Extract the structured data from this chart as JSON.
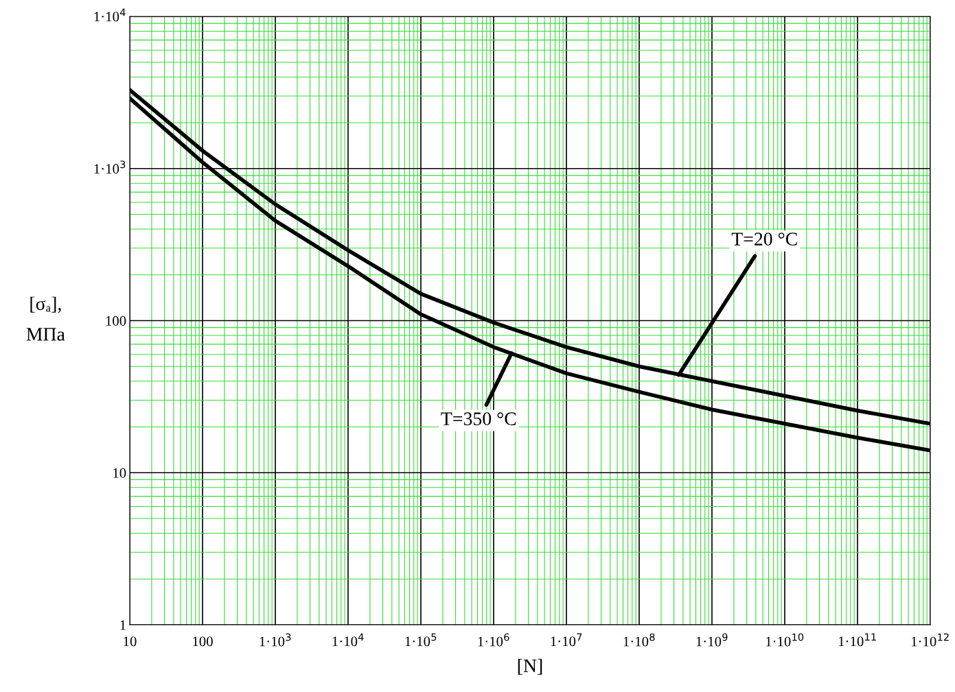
{
  "chart_data": {
    "type": "line",
    "xlabel": "[N]",
    "ylabel": "[σₐ],\nМПа",
    "log": "xy",
    "grid": true,
    "marker": "none",
    "line_style": "solid",
    "legend": false,
    "x": [
      10,
      100,
      1000,
      10000,
      100000,
      1000000,
      10000000,
      100000000,
      1000000000,
      10000000000,
      100000000000,
      1000000000000
    ],
    "series": [
      {
        "color": "#000000",
        "values": [
          3290,
          1310,
          582,
          290,
          150,
          97,
          67,
          50,
          40,
          32,
          25.6,
          21
        ]
      },
      {
        "color": "#000000",
        "values": [
          2900,
          1100,
          454,
          228,
          110,
          67,
          45,
          34,
          26,
          21,
          17,
          14
        ]
      }
    ],
    "xlim": [
      10,
      1000000000000
    ],
    "xticks": [
      {
        "value": 10,
        "label": "10"
      },
      {
        "value": 100,
        "label": "100"
      },
      {
        "value": 1000,
        "label": "1·10$^{3}$"
      },
      {
        "value": 10000,
        "label": "1·10$^{4}$"
      },
      {
        "value": 100000,
        "label": "1·10$^{5}$"
      },
      {
        "value": 1000000,
        "label": "1·10$^{6}$"
      },
      {
        "value": 10000000,
        "label": "1·10$^{7}$"
      },
      {
        "value": 100000000,
        "label": "1·10$^{8}$"
      },
      {
        "value": 1000000000,
        "label": "1·10$^{9}$"
      },
      {
        "value": 10000000000,
        "label": "1·10$^{10}$"
      },
      {
        "value": 100000000000,
        "label": "1·10$^{11}$"
      },
      {
        "value": 1000000000000,
        "label": "1·10$^{12}$"
      },
      {
        "value": 20.0,
        "label": null
      },
      {
        "value": 30.0,
        "label": null
      },
      {
        "value": 40.0,
        "label": null
      },
      {
        "value": 50.0,
        "label": null
      },
      {
        "value": 60.0,
        "label": null
      },
      {
        "value": 70.0,
        "label": null
      },
      {
        "value": 80.0,
        "label": null
      },
      {
        "value": 90.0,
        "label": null
      },
      {
        "value": 200.0,
        "label": null
      },
      {
        "value": 300.0,
        "label": null
      },
      {
        "value": 400.0,
        "label": null
      },
      {
        "value": 500.0,
        "label": null
      },
      {
        "value": 600.0,
        "label": null
      },
      {
        "value": 700.0,
        "label": null
      },
      {
        "value": 800.0,
        "label": null
      },
      {
        "value": 900.0,
        "label": null
      },
      {
        "value": 2000.0,
        "label": null
      },
      {
        "value": 3000.0,
        "label": null
      },
      {
        "value": 4000.0,
        "label": null
      },
      {
        "value": 5000.0,
        "label": null
      },
      {
        "value": 6000.0,
        "label": null
      },
      {
        "value": 7000.0,
        "label": null
      },
      {
        "value": 8000.0,
        "label": null
      },
      {
        "value": 9000.0,
        "label": null
      },
      {
        "value": 20000.0,
        "label": null
      },
      {
        "value": 30000.0,
        "label": null
      },
      {
        "value": 40000.0,
        "label": null
      },
      {
        "value": 50000.0,
        "label": null
      },
      {
        "value": 60000.0,
        "label": null
      },
      {
        "value": 70000.0,
        "label": null
      },
      {
        "value": 80000.0,
        "label": null
      },
      {
        "value": 90000.0,
        "label": null
      },
      {
        "value": 200000.0,
        "label": null
      },
      {
        "value": 300000.0,
        "label": null
      },
      {
        "value": 400000.0,
        "label": null
      },
      {
        "value": 500000.0,
        "label": null
      },
      {
        "value": 600000.0,
        "label": null
      },
      {
        "value": 700000.0,
        "label": null
      },
      {
        "value": 800000.0,
        "label": null
      },
      {
        "value": 900000.0,
        "label": null
      },
      {
        "value": 2000000.0,
        "label": null
      },
      {
        "value": 3000000.0,
        "label": null
      },
      {
        "value": 4000000.0,
        "label": null
      },
      {
        "value": 5000000.0,
        "label": null
      },
      {
        "value": 6000000.0,
        "label": null
      },
      {
        "value": 7000000.0,
        "label": null
      },
      {
        "value": 8000000.0,
        "label": null
      },
      {
        "value": 9000000.0,
        "label": null
      },
      {
        "value": 20000000.0,
        "label": null
      },
      {
        "value": 30000000.0,
        "label": null
      },
      {
        "value": 40000000.0,
        "label": null
      },
      {
        "value": 50000000.0,
        "label": null
      },
      {
        "value": 60000000.0,
        "label": null
      },
      {
        "value": 70000000.0,
        "label": null
      },
      {
        "value": 80000000.0,
        "label": null
      },
      {
        "value": 90000000.0,
        "label": null
      },
      {
        "value": 200000000.0,
        "label": null
      },
      {
        "value": 300000000.0,
        "label": null
      },
      {
        "value": 400000000.0,
        "label": null
      },
      {
        "value": 500000000.0,
        "label": null
      },
      {
        "value": 600000000.0,
        "label": null
      },
      {
        "value": 700000000.0,
        "label": null
      },
      {
        "value": 800000000.0,
        "label": null
      },
      {
        "value": 900000000.0,
        "label": null
      },
      {
        "value": 2000000000.0,
        "label": null
      },
      {
        "value": 3000000000.0,
        "label": null
      },
      {
        "value": 4000000000.0,
        "label": null
      },
      {
        "value": 5000000000.0,
        "label": null
      },
      {
        "value": 6000000000.0,
        "label": null
      },
      {
        "value": 7000000000.0,
        "label": null
      },
      {
        "value": 8000000000.0,
        "label": null
      },
      {
        "value": 9000000000.0,
        "label": null
      },
      {
        "value": 20000000000.0,
        "label": null
      },
      {
        "value": 30000000000.0,
        "label": null
      },
      {
        "value": 40000000000.0,
        "label": null
      },
      {
        "value": 50000000000.0,
        "label": null
      },
      {
        "value": 60000000000.0,
        "label": null
      },
      {
        "value": 70000000000.0,
        "label": null
      },
      {
        "value": 80000000000.0,
        "label": null
      },
      {
        "value": 90000000000.0,
        "label": null
      },
      {
        "value": 200000000000.0,
        "label": null
      },
      {
        "value": 300000000000.0,
        "label": null
      },
      {
        "value": 400000000000.0,
        "label": null
      },
      {
        "value": 500000000000.0,
        "label": null
      },
      {
        "value": 600000000000.0,
        "label": null
      },
      {
        "value": 700000000000.0,
        "label": null
      },
      {
        "value": 800000000000.0,
        "label": null
      },
      {
        "value": 900000000000.0,
        "label": null
      }
    ],
    "ylim": [
      1,
      10000
    ],
    "yticks": [
      1,
      10,
      100,
      {
        "value": 1000,
        "label": "1·10$^{3}$"
      },
      {
        "value": 10000,
        "label": "1·10$^{4}$"
      },
      {
        "value": 2,
        "label": null
      },
      {
        "value": 3,
        "label": null
      },
      {
        "value": 4,
        "label": null
      },
      {
        "value": 5,
        "label": null
      },
      {
        "value": 6,
        "label": null
      },
      {
        "value": 7,
        "label": null
      },
      {
        "value": 8,
        "label": null
      },
      {
        "value": 9,
        "label": null
      },
      {
        "value": 20,
        "label": null
      },
      {
        "value": 30,
        "label": null
      },
      {
        "value": 40,
        "label": null
      },
      {
        "value": 50,
        "label": null
      },
      {
        "value": 60,
        "label": null
      },
      {
        "value": 70,
        "label": null
      },
      {
        "value": 80,
        "label": null
      },
      {
        "value": 90,
        "label": null
      },
      {
        "value": 200,
        "label": null
      },
      {
        "value": 300,
        "label": null
      },
      {
        "value": 400,
        "label": null
      },
      {
        "value": 500,
        "label": null
      },
      {
        "value": 600,
        "label": null
      },
      {
        "value": 700,
        "label": null
      },
      {
        "value": 800,
        "label": null
      },
      {
        "value": 900,
        "label": null
      },
      {
        "value": 2000,
        "label": null
      },
      {
        "value": 3000,
        "label": null
      },
      {
        "value": 4000,
        "label": null
      },
      {
        "value": 5000,
        "label": null
      },
      {
        "value": 6000,
        "label": null
      },
      {
        "value": 7000,
        "label": null
      },
      {
        "value": 8000,
        "label": null
      },
      {
        "value": 9000,
        "label": null
      }
    ],
    "annotations": [
      {
        "text": "T=20 °C",
        "x": 350000000,
        "y": 44
      },
      {
        "text": "T=350 °C",
        "x": 1760000,
        "y": 61
      }
    ]
  }
}
